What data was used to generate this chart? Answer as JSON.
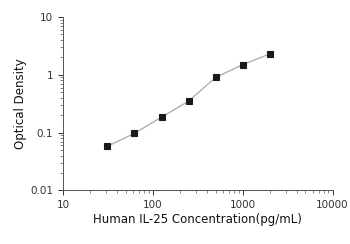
{
  "x_data": [
    31.25,
    62.5,
    125,
    250,
    500,
    1000,
    2000
  ],
  "y_data": [
    0.058,
    0.097,
    0.185,
    0.35,
    0.9,
    1.5,
    2.3
  ],
  "xlabel": "Human IL-25 Concentration(pg/mL)",
  "ylabel": "Optical Density",
  "xlim": [
    10,
    10000
  ],
  "ylim": [
    0.01,
    10
  ],
  "line_color": "#b0b0b0",
  "marker_color": "#1a1a1a",
  "marker": "s",
  "marker_size": 4.5,
  "line_width": 1.0,
  "xlabel_fontsize": 8.5,
  "ylabel_fontsize": 8.5,
  "tick_fontsize": 7.5,
  "background_color": "#ffffff",
  "spine_color": "#555555",
  "spine_linewidth": 0.7
}
